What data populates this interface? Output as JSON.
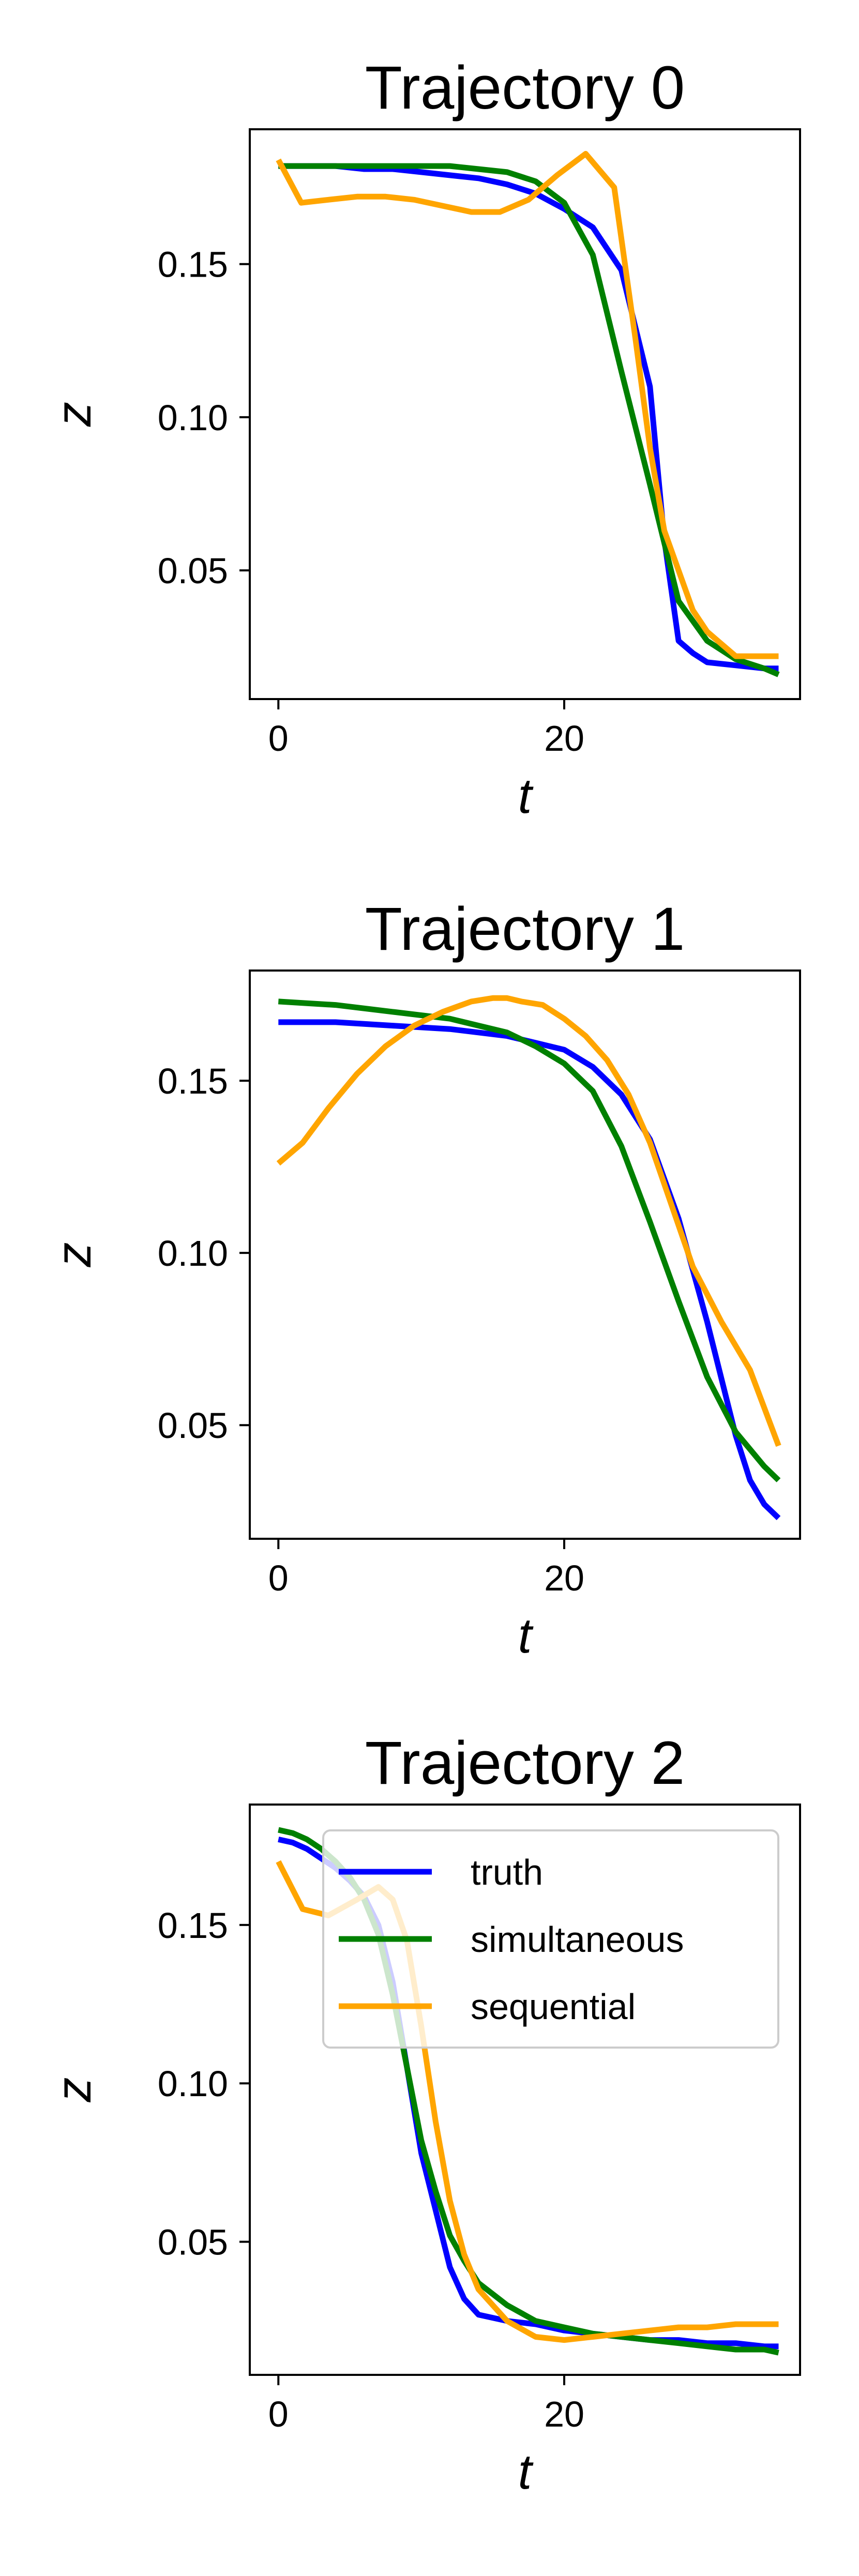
{
  "chart_data": [
    {
      "type": "line",
      "title": "Trajectory 0",
      "xlabel": "t",
      "ylabel": "z",
      "xlim": [
        -2,
        36.5
      ],
      "ylim": [
        0.008,
        0.194
      ],
      "xticks": [
        0,
        20
      ],
      "xtick_labels": [
        "0",
        "20"
      ],
      "yticks": [
        0.05,
        0.1,
        0.15
      ],
      "ytick_labels": [
        "0.05",
        "0.10",
        "0.15"
      ],
      "legend": null,
      "series": [
        {
          "key": "truth",
          "color": "#0000ff",
          "x": [
            0,
            2,
            4,
            6,
            8,
            10,
            12,
            14,
            16,
            18,
            20,
            22,
            24,
            26,
            27,
            28,
            29,
            30,
            32,
            34,
            35
          ],
          "y": [
            0.182,
            0.182,
            0.182,
            0.181,
            0.181,
            0.18,
            0.179,
            0.178,
            0.176,
            0.173,
            0.168,
            0.162,
            0.148,
            0.11,
            0.06,
            0.027,
            0.023,
            0.02,
            0.019,
            0.018,
            0.018
          ]
        },
        {
          "key": "simultaneous",
          "color": "#008000",
          "x": [
            0,
            2,
            4,
            6,
            8,
            10,
            12,
            14,
            16,
            18,
            20,
            22,
            24,
            26,
            28,
            30,
            32,
            34,
            35
          ],
          "y": [
            0.182,
            0.182,
            0.182,
            0.182,
            0.182,
            0.182,
            0.182,
            0.181,
            0.18,
            0.177,
            0.17,
            0.153,
            0.115,
            0.078,
            0.04,
            0.027,
            0.021,
            0.018,
            0.016
          ]
        },
        {
          "key": "sequential",
          "color": "#ffa500",
          "x": [
            0,
            1.6,
            3.5,
            5.5,
            7.5,
            9.5,
            11.5,
            13.5,
            15.5,
            17.5,
            19.5,
            21.5,
            23.5,
            25,
            26,
            27,
            28,
            29,
            30,
            32,
            34,
            35
          ],
          "y": [
            0.184,
            0.17,
            0.171,
            0.172,
            0.172,
            0.171,
            0.169,
            0.167,
            0.167,
            0.171,
            0.179,
            0.186,
            0.175,
            0.125,
            0.09,
            0.063,
            0.05,
            0.037,
            0.03,
            0.022,
            0.022,
            0.022
          ]
        }
      ]
    },
    {
      "type": "line",
      "title": "Trajectory 1",
      "xlabel": "t",
      "ylabel": "z",
      "xlim": [
        -2,
        36.5
      ],
      "ylim": [
        0.017,
        0.182
      ],
      "xticks": [
        0,
        20
      ],
      "xtick_labels": [
        "0",
        "20"
      ],
      "yticks": [
        0.05,
        0.1,
        0.15
      ],
      "ytick_labels": [
        "0.05",
        "0.10",
        "0.15"
      ],
      "legend": null,
      "series": [
        {
          "key": "truth",
          "color": "#0000ff",
          "x": [
            0,
            4,
            8,
            12,
            16,
            18,
            20,
            22,
            24,
            26,
            28,
            30,
            32,
            33,
            34,
            35
          ],
          "y": [
            0.167,
            0.167,
            0.166,
            0.165,
            0.163,
            0.161,
            0.159,
            0.154,
            0.146,
            0.133,
            0.11,
            0.08,
            0.047,
            0.034,
            0.027,
            0.023
          ]
        },
        {
          "key": "simultaneous",
          "color": "#008000",
          "x": [
            0,
            4,
            8,
            12,
            16,
            18,
            20,
            22,
            24,
            26,
            28,
            30,
            32,
            34,
            35
          ],
          "y": [
            0.173,
            0.172,
            0.17,
            0.168,
            0.164,
            0.16,
            0.155,
            0.147,
            0.131,
            0.109,
            0.086,
            0.064,
            0.048,
            0.038,
            0.034
          ]
        },
        {
          "key": "sequential",
          "color": "#ffa500",
          "x": [
            0,
            1.7,
            3.5,
            5.5,
            7.5,
            9.5,
            11.5,
            13.5,
            15,
            16,
            17,
            18.5,
            20,
            21.5,
            23,
            24.5,
            26,
            27.5,
            29,
            31,
            33,
            35
          ],
          "y": [
            0.126,
            0.132,
            0.142,
            0.152,
            0.16,
            0.166,
            0.17,
            0.173,
            0.174,
            0.174,
            0.173,
            0.172,
            0.168,
            0.163,
            0.156,
            0.146,
            0.132,
            0.114,
            0.096,
            0.08,
            0.066,
            0.044
          ]
        }
      ]
    },
    {
      "type": "line",
      "title": "Trajectory 2",
      "xlabel": "t",
      "ylabel": "z",
      "xlim": [
        -2,
        36.5
      ],
      "ylim": [
        0.008,
        0.188
      ],
      "xticks": [
        0,
        20
      ],
      "xtick_labels": [
        "0",
        "20"
      ],
      "yticks": [
        0.05,
        0.1,
        0.15
      ],
      "ytick_labels": [
        "0.05",
        "0.10",
        "0.15"
      ],
      "legend": {
        "placement": "upper right",
        "entries": [
          "truth",
          "simultaneous",
          "sequential"
        ]
      },
      "series": [
        {
          "key": "truth",
          "color": "#0000ff",
          "name": "truth",
          "x": [
            0,
            1,
            2,
            3,
            4,
            5,
            6,
            7,
            8,
            9,
            10,
            11,
            12,
            13,
            14,
            16,
            18,
            20,
            22,
            24,
            26,
            28,
            30,
            32,
            34,
            35
          ],
          "y": [
            0.177,
            0.176,
            0.174,
            0.171,
            0.168,
            0.164,
            0.159,
            0.15,
            0.132,
            0.105,
            0.078,
            0.06,
            0.042,
            0.032,
            0.027,
            0.025,
            0.024,
            0.022,
            0.021,
            0.02,
            0.019,
            0.019,
            0.018,
            0.018,
            0.017,
            0.017
          ]
        },
        {
          "key": "simultaneous",
          "color": "#008000",
          "name": "simultaneous",
          "x": [
            0,
            1,
            2,
            3,
            4,
            5,
            6,
            7,
            8,
            9,
            10,
            11,
            12,
            13,
            14,
            16,
            18,
            20,
            22,
            24,
            26,
            28,
            30,
            32,
            34,
            35
          ],
          "y": [
            0.18,
            0.179,
            0.177,
            0.174,
            0.17,
            0.165,
            0.158,
            0.147,
            0.128,
            0.105,
            0.082,
            0.066,
            0.052,
            0.044,
            0.037,
            0.03,
            0.025,
            0.023,
            0.021,
            0.02,
            0.019,
            0.018,
            0.017,
            0.016,
            0.016,
            0.015
          ]
        },
        {
          "key": "sequential",
          "color": "#ffa500",
          "name": "sequential",
          "x": [
            0,
            1.7,
            3.5,
            5.5,
            7,
            8,
            9,
            10,
            11,
            12,
            13,
            14,
            15,
            16,
            18,
            20,
            22,
            24,
            26,
            28,
            30,
            32,
            34,
            35
          ],
          "y": [
            0.17,
            0.155,
            0.153,
            0.158,
            0.162,
            0.158,
            0.145,
            0.118,
            0.088,
            0.063,
            0.046,
            0.035,
            0.03,
            0.025,
            0.02,
            0.019,
            0.02,
            0.021,
            0.022,
            0.023,
            0.023,
            0.024,
            0.024,
            0.024
          ]
        }
      ]
    }
  ]
}
